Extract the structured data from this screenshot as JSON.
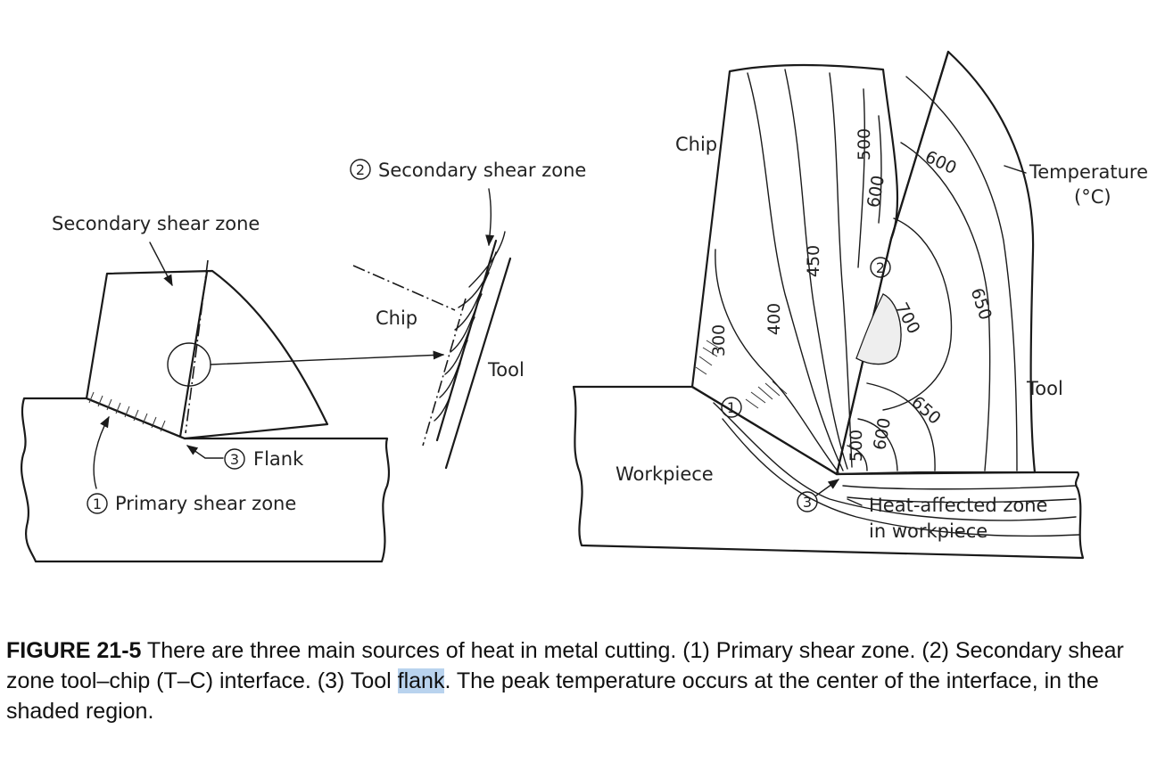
{
  "left_diagram": {
    "secondary_shear_zone": "Secondary shear zone",
    "flank_num": "3",
    "flank": "Flank",
    "primary_num": "1",
    "primary_shear_zone": "Primary shear zone"
  },
  "middle_diagram": {
    "secondary_num": "2",
    "secondary_shear_zone": "Secondary shear zone",
    "chip": "Chip",
    "tool": "Tool"
  },
  "right_diagram": {
    "chip": "Chip",
    "temperature": "Temperature",
    "temperature_unit": "(°C)",
    "tool": "Tool",
    "workpiece": "Workpiece",
    "heat_affected_line1": "Heat-affected zone",
    "heat_affected_line2": "in workpiece",
    "zone1": "1",
    "zone2": "2",
    "zone3": "3",
    "isotherms": {
      "t300": "300",
      "t400": "400",
      "t450": "450",
      "t500_top": "500",
      "t600_chip": "600",
      "t600_tool": "600",
      "t650_tool": "650",
      "t700": "700",
      "t650_low": "650",
      "t600_low": "600",
      "t500_low": "500"
    }
  },
  "caption": {
    "figure_label": "FIGURE 21-5",
    "text_before": " There are three main sources of heat in metal cutting. (1) Primary shear zone. (2) Secondary shear zone tool–chip (T–C) interface. (3) Tool ",
    "highlighted": "flank",
    "text_after": ". The peak temperature occurs at the center of the interface, in the shaded region."
  }
}
